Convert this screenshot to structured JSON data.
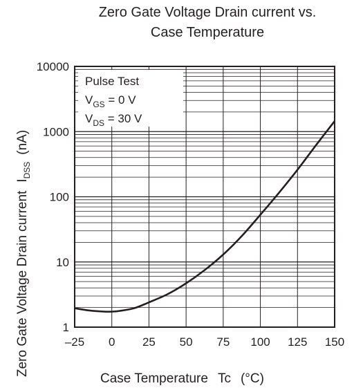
{
  "chart_data": {
    "type": "line",
    "title_lines": [
      "Zero Gate Voltage Drain current vs.",
      "Case Temperature"
    ],
    "xlabel": {
      "main": "Case Temperature",
      "symbol": "Tc",
      "unit": "(°C)"
    },
    "ylabel": {
      "main": "Zero Gate Voltage Drain current",
      "symbol": "I",
      "symbol_sub": "DSS",
      "unit": "(nA)"
    },
    "xlim": [
      -25,
      150
    ],
    "ylim": [
      1,
      10000
    ],
    "y_scale": "log",
    "grid": true,
    "x_ticks": [
      -25,
      0,
      25,
      50,
      75,
      100,
      125,
      150
    ],
    "x_tick_labels": [
      "–25",
      "0",
      "25",
      "50",
      "75",
      "100",
      "125",
      "150"
    ],
    "y_ticks": [
      1,
      10,
      100,
      1000,
      10000
    ],
    "y_tick_labels": [
      "1",
      "10",
      "100",
      "1000",
      "10000"
    ],
    "annotation": {
      "line1": "Pulse Test",
      "line2": {
        "sym": "V",
        "sub": "GS",
        "rest": " = 0 V"
      },
      "line3": {
        "sym": "V",
        "sub": "DS",
        "rest": " = 30 V"
      }
    },
    "series": [
      {
        "x": [
          -25,
          -15,
          -5,
          0,
          5,
          15,
          25,
          37.5,
          50,
          62.5,
          75,
          87.5,
          100,
          112.5,
          125,
          137.5,
          150
        ],
        "y": [
          1.95,
          1.8,
          1.73,
          1.73,
          1.77,
          1.95,
          2.4,
          3.2,
          4.7,
          7.5,
          13,
          25,
          53,
          115,
          260,
          620,
          1450
        ]
      }
    ],
    "colors": {
      "line": "#231f20",
      "grid": "#231f20"
    }
  }
}
